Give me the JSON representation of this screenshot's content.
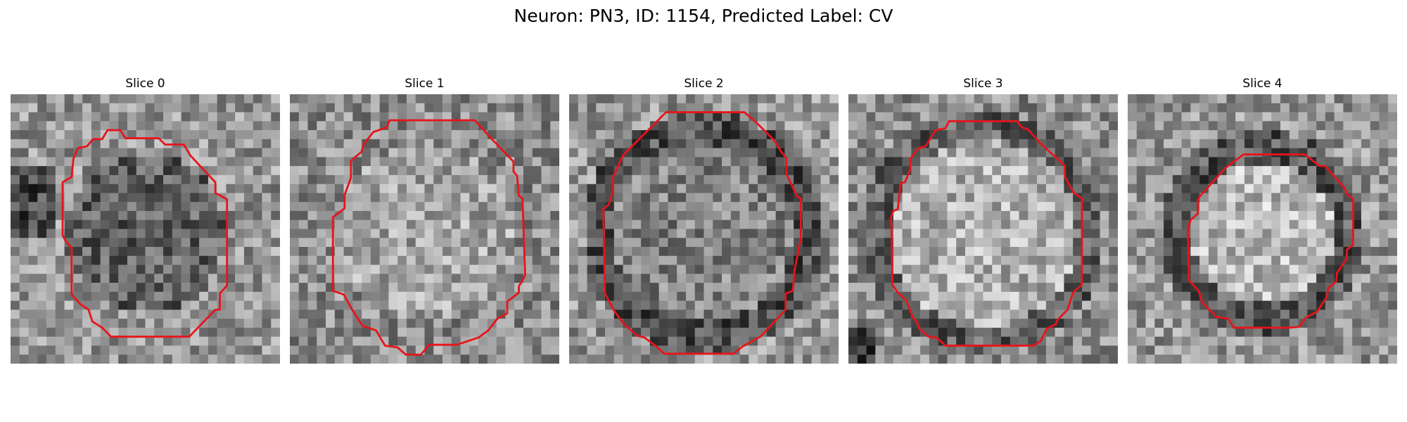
{
  "figure": {
    "title": "Neuron: PN3, ID: 1154, Predicted Label: CV"
  },
  "panels": [
    {
      "title": "Slice 0",
      "texture": "dark-center",
      "seed": 11,
      "outline": "red"
    },
    {
      "title": "Slice 1",
      "texture": "bright-center",
      "seed": 23,
      "outline": "red"
    },
    {
      "title": "Slice 2",
      "texture": "ring",
      "seed": 37,
      "outline": "red"
    },
    {
      "title": "Slice 3",
      "texture": "ring-bright",
      "seed": 41,
      "outline": "red"
    },
    {
      "title": "Slice 4",
      "texture": "ring-small",
      "seed": 53,
      "outline": "red"
    }
  ],
  "colors": {
    "contour": "#e8141b",
    "background": "#ffffff"
  }
}
